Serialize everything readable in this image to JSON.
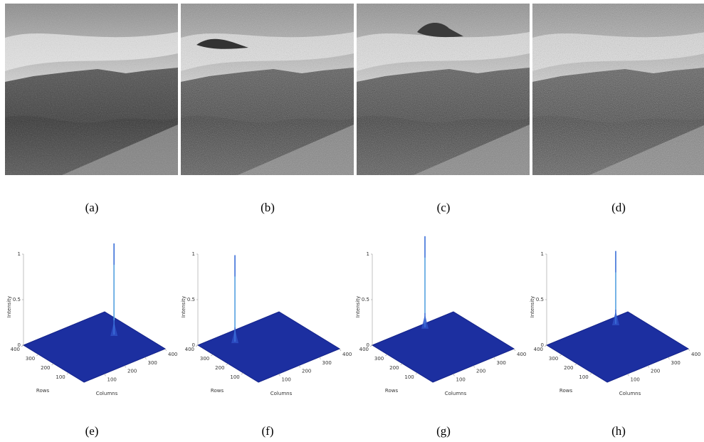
{
  "panels": [
    {
      "caption": "(a)"
    },
    {
      "caption": "(b)"
    },
    {
      "caption": "(c)"
    },
    {
      "caption": "(d)"
    }
  ],
  "plots": [
    {
      "caption": "(e)",
      "z_label": "Intensity",
      "x_label": "Columns",
      "y_label": "Rows",
      "zlim": [
        0,
        1
      ],
      "xlim": [
        0,
        400
      ],
      "ylim": [
        0,
        400
      ],
      "zticks": [
        0,
        0.5,
        1
      ],
      "xticks": [
        100,
        200,
        300,
        400
      ],
      "yticks": [
        100,
        200,
        300,
        400
      ],
      "peak": {
        "column": 318,
        "row": 228,
        "intensity": 1
      }
    },
    {
      "caption": "(f)",
      "z_label": "Intensity",
      "x_label": "Columns",
      "y_label": "Rows",
      "zlim": [
        0,
        1
      ],
      "xlim": [
        0,
        400
      ],
      "ylim": [
        0,
        400
      ],
      "zticks": [
        0,
        0.5,
        1
      ],
      "xticks": [
        100,
        200,
        300,
        400
      ],
      "yticks": [
        100,
        200,
        300,
        400
      ],
      "peak": {
        "column": 126,
        "row": 324,
        "intensity": 0.95
      }
    },
    {
      "caption": "(g)",
      "z_label": "Intensity",
      "x_label": "Columns",
      "y_label": "Rows",
      "zlim": [
        0,
        1
      ],
      "xlim": [
        0,
        400
      ],
      "ylim": [
        0,
        400
      ],
      "zticks": [
        0,
        0.5,
        1
      ],
      "xticks": [
        100,
        200,
        300,
        400
      ],
      "yticks": [
        100,
        200,
        300,
        400
      ],
      "peak": {
        "column": 241,
        "row": 375,
        "intensity": 1
      }
    },
    {
      "caption": "(h)",
      "z_label": "Intensity",
      "x_label": "Columns",
      "y_label": "Rows",
      "zlim": [
        0,
        1
      ],
      "xlim": [
        0,
        400
      ],
      "ylim": [
        0,
        400
      ],
      "zticks": [
        0,
        0.5,
        1
      ],
      "xticks": [
        100,
        200,
        300,
        400
      ],
      "yticks": [
        100,
        200,
        300,
        400
      ],
      "peak": {
        "column": 306,
        "row": 354,
        "intensity": 0.8
      }
    }
  ]
}
